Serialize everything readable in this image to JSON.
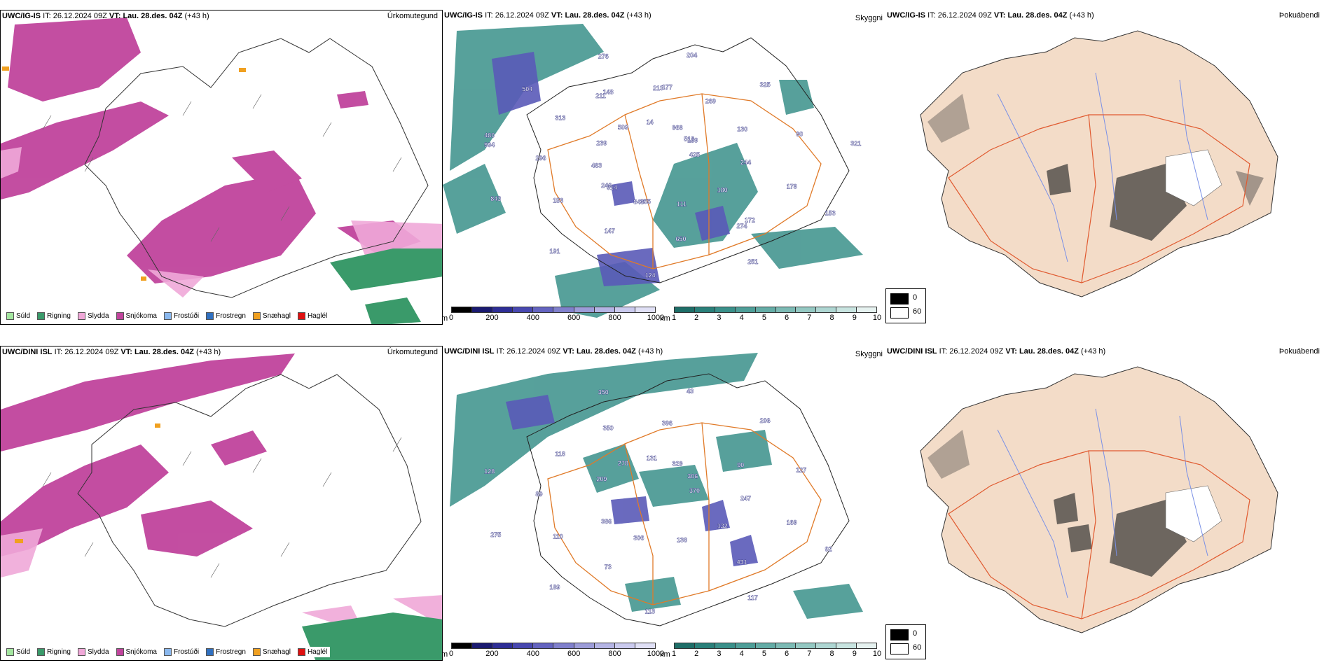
{
  "header_common": {
    "it_label": "IT:",
    "it_value": "26.12.2024 09Z",
    "vt_label": "VT:",
    "vt_value": "Lau. 28.des. 04Z",
    "lead": "(+43 h)"
  },
  "rows": [
    {
      "model": "UWC/IG-IS",
      "precip_title": "Úrkomutegund",
      "cloud_title": "Skyggni",
      "fog_title": "Þokuábendi",
      "cloud_labels": [
        "425",
        "246",
        "177",
        "274",
        "480",
        "159",
        "848",
        "148",
        "178",
        "843",
        "968",
        "111",
        "313",
        "90",
        "191",
        "14",
        "180",
        "296",
        "325",
        "124",
        "509",
        "244",
        "153",
        "204",
        "251",
        "239",
        "130",
        "147",
        "276",
        "153",
        "463",
        "269",
        "650",
        "504",
        "321",
        "914",
        "213",
        "172",
        "994",
        "518",
        "355",
        "211"
      ]
    },
    {
      "model": "UWC/DINI ISL",
      "precip_title": "Úrkomutegund",
      "cloud_title": "Skyggni",
      "fog_title": "Þokuábendi",
      "cloud_labels": [
        "370",
        "386",
        "396",
        "431",
        "128",
        "306",
        "306",
        "350",
        "169",
        "275",
        "329",
        "138",
        "118",
        "127",
        "189",
        "131",
        "132",
        "89",
        "206",
        "113",
        "278",
        "247",
        "110",
        "43",
        "117",
        "209",
        "90",
        "73",
        "350",
        "92"
      ]
    }
  ],
  "precip_legend": [
    {
      "label": "Súld",
      "color": "#a4e6a0"
    },
    {
      "label": "Rigning",
      "color": "#3a9a6a"
    },
    {
      "label": "Slydda",
      "color": "#f0a8d8"
    },
    {
      "label": "Snjókoma",
      "color": "#c0449c"
    },
    {
      "label": "Frostúði",
      "color": "#8ab8ee"
    },
    {
      "label": "Frostregn",
      "color": "#3070c0"
    },
    {
      "label": "Snæhagl",
      "color": "#f0a020"
    },
    {
      "label": "Haglél",
      "color": "#e01010"
    }
  ],
  "ceiling_bar": {
    "unit": "m",
    "ticks": [
      "0",
      "200",
      "400",
      "600",
      "800",
      "1000"
    ],
    "colors": [
      "#000000",
      "#1a1a70",
      "#2e2e96",
      "#4848b0",
      "#6464c0",
      "#8080cc",
      "#9c9cd8",
      "#b4b4e4",
      "#cacaee",
      "#e0e0f6"
    ]
  },
  "visibility_bar": {
    "unit": "km",
    "ticks": [
      "1",
      "2",
      "3",
      "4",
      "5",
      "6",
      "7",
      "8",
      "9",
      "10"
    ],
    "colors": [
      "#1e6e68",
      "#2a807a",
      "#3a908a",
      "#4e9e98",
      "#64aca6",
      "#7cbab4",
      "#94c8c2",
      "#aed6d2",
      "#c8e4e0",
      "#e6f2f0"
    ]
  },
  "fog_legend": {
    "high": "0",
    "low": "60",
    "high_color": "#000000",
    "low_color": "#ffffff"
  }
}
